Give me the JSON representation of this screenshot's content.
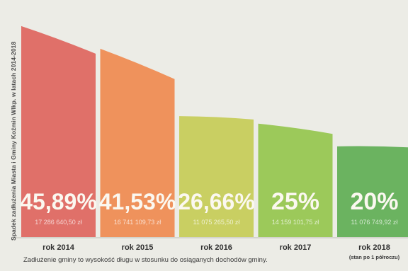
{
  "chart_data": {
    "type": "bar",
    "ylabel": "Spadek zadłużenia Miasta i Gminy Koźmin Wlkp. w latach 2014-2018",
    "categories": [
      "rok 2014",
      "rok 2015",
      "rok 2016",
      "rok 2017",
      "rok 2018"
    ],
    "category_notes": [
      "",
      "",
      "",
      "",
      "(stan po 1 półroczu)"
    ],
    "values": [
      45.89,
      41.53,
      26.66,
      25,
      20
    ],
    "value_labels": [
      "45,89%",
      "41,53%",
      "26,66%",
      "25%",
      "20%"
    ],
    "amount_labels": [
      "17 286 640,50 zł",
      "16 741 109,73 zł",
      "11 075 265,50 zł",
      "14 159 101,75 zł",
      "11 076 749,92 zł"
    ],
    "colors": [
      "#e07069",
      "#ef925c",
      "#c9cf62",
      "#9cc95a",
      "#6bb360"
    ],
    "ylim": [
      0,
      50
    ],
    "footnote": "Zadłużenie gminy to wysokość długu w stosunku do osiąganych dochodów gminy."
  }
}
